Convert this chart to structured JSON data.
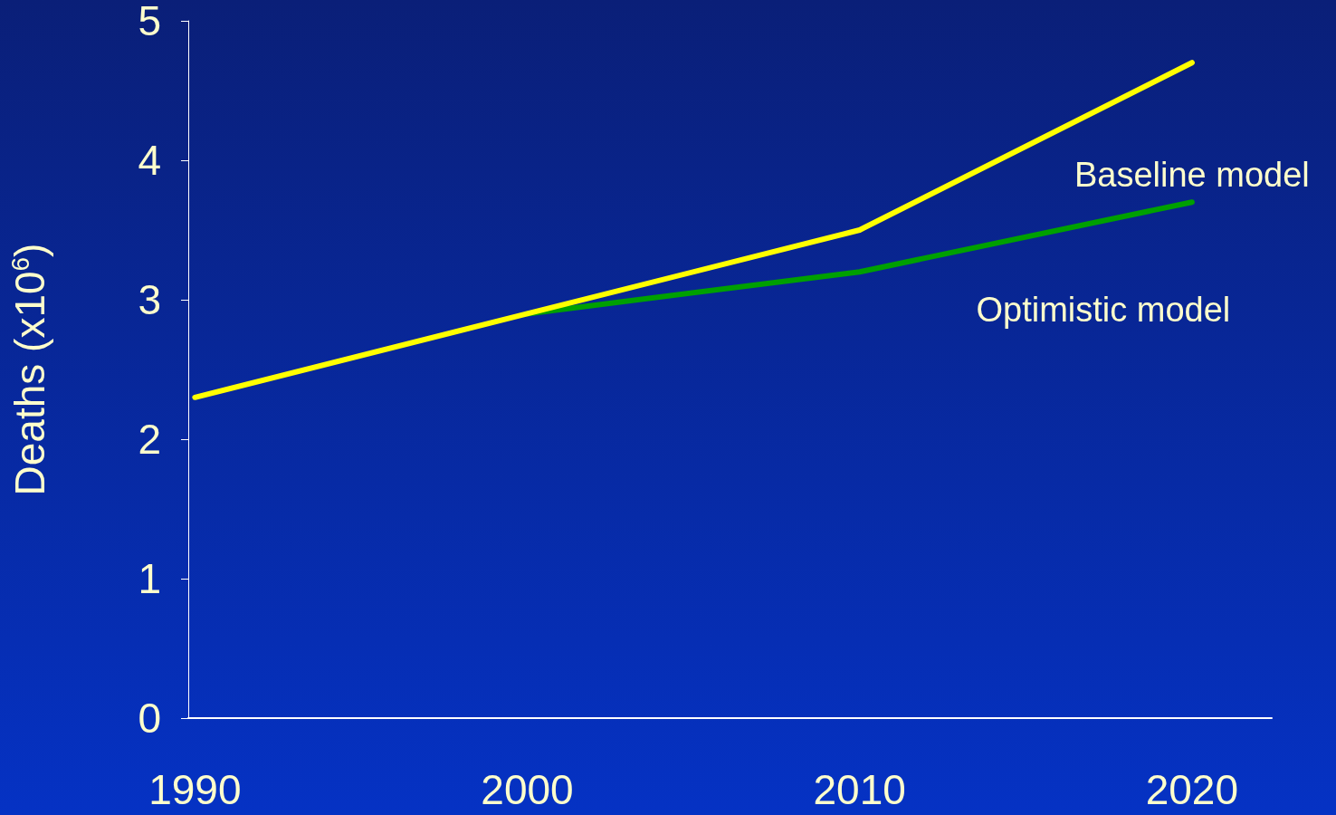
{
  "chart_data": {
    "type": "line",
    "ylabel": "Deaths (x10$^{6}$)",
    "x": [
      1990,
      2000,
      2010,
      2020
    ],
    "series": [
      {
        "name": "Baseline model",
        "color": "#ffff00",
        "values": [
          2.3,
          2.9,
          3.5,
          4.7
        ]
      },
      {
        "name": "Optimistic model",
        "color": "#00a000",
        "values": [
          null,
          2.9,
          3.2,
          3.7
        ]
      }
    ],
    "xlim": [
      1989.8,
      2022.4
    ],
    "xticks": [
      1990,
      2000,
      2010,
      2020
    ],
    "ylim": [
      0,
      5
    ],
    "yticks": [
      0,
      1,
      2,
      3,
      4,
      5
    ],
    "grid": false,
    "legend": false,
    "marker": "none",
    "line_style": "solid"
  }
}
